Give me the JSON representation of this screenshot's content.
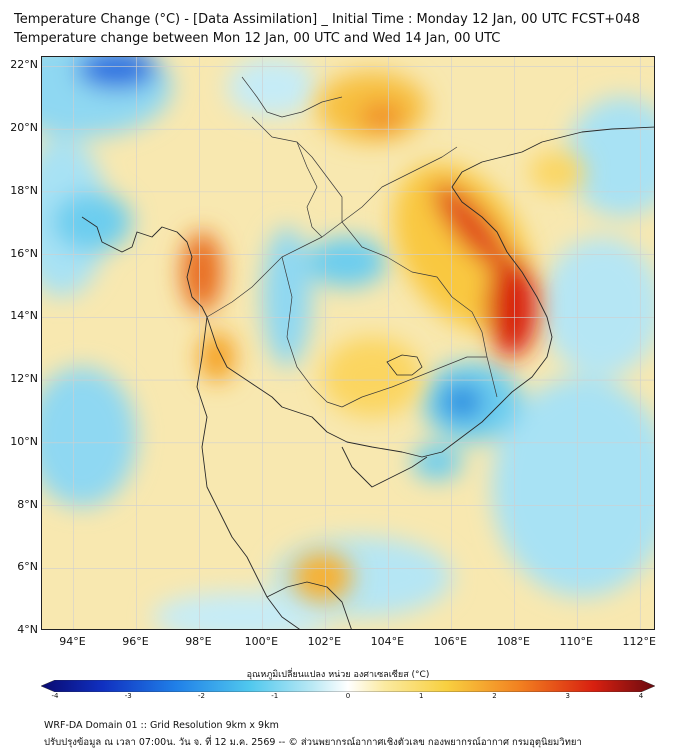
{
  "header": {
    "title_line1": "Temperature Change (°C) - [Data Assimilation] _ Initial Time : Monday 12 Jan, 00 UTC FCST+048",
    "title_line2": "Temperature change between Mon 12 Jan, 00 UTC and Wed 14 Jan, 00 UTC"
  },
  "map": {
    "lat_labels": [
      "22°N",
      "20°N",
      "18°N",
      "16°N",
      "14°N",
      "12°N",
      "10°N",
      "8°N",
      "6°N",
      "4°N"
    ],
    "lon_labels": [
      "94°E",
      "96°E",
      "98°E",
      "100°E",
      "102°E",
      "104°E",
      "106°E",
      "108°E",
      "110°E",
      "112°E"
    ],
    "extent": {
      "lon_min": 93,
      "lon_max": 112.5,
      "lat_min": 4,
      "lat_max": 22.3
    },
    "colors": {
      "ocean_base": "#f8e8b0",
      "warm_strong": "#d82010",
      "warm": "#f5a020",
      "warm_light": "#fbd560",
      "cool_light": "#a8e2f4",
      "cool": "#50c8ee",
      "cool_strong": "#2090e0",
      "coast_line": "#2a2a2a",
      "grid_line": "#cfcfcf"
    }
  },
  "colorbar": {
    "title": "อุณหภูมิเปลี่ยนแปลง หน่วย องศาเซลเซียส (°C)",
    "min": -4,
    "max": 4,
    "ticks": [
      "-4",
      "-3",
      "-2",
      "-1",
      "0",
      "1",
      "2",
      "3",
      "4"
    ]
  },
  "footer": {
    "line1": "WRF-DA Domain 01 :: Grid Resolution 9km x 9km",
    "line2": "ปรับปรุงข้อมูล ณ เวลา 07:00น. วัน จ. ที่ 12 ม.ค. 2569 -- © ส่วนพยากรณ์อากาศเชิงตัวเลข กองพยากรณ์อากาศ กรมอุตุนิยมวิทยา"
  }
}
